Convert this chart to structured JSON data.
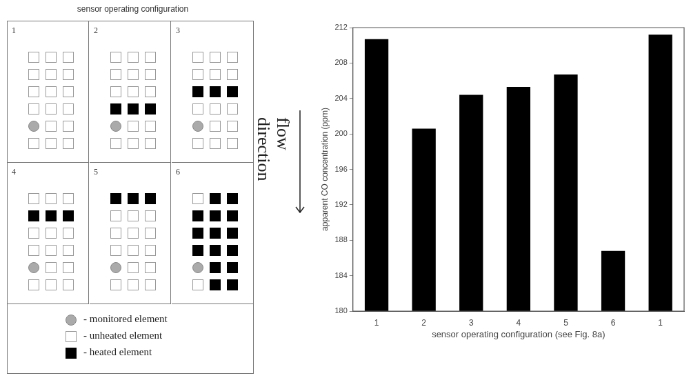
{
  "chart_data": [
    {
      "type": "other",
      "title": "sensor operating configuration",
      "annotations": [
        "1",
        "2",
        "3",
        "4",
        "5",
        "6",
        "- monitored element",
        "- unheated element",
        "- heated element",
        "flow direction"
      ]
    },
    {
      "type": "bar",
      "xlabel": "sensor operating configuration (see Fig. 8a)",
      "ylabel": "apparent CO concentration (ppm)",
      "categories": [
        "1",
        "2",
        "3",
        "4",
        "5",
        "6",
        "1"
      ],
      "values": [
        210.7,
        200.6,
        204.4,
        205.3,
        206.7,
        186.8,
        211.2
      ],
      "color": "#000000",
      "ylim": [
        180,
        212
      ],
      "yticks": [
        180,
        184,
        188,
        192,
        196,
        200,
        204,
        208,
        212
      ],
      "grid": false,
      "legend": false
    }
  ]
}
